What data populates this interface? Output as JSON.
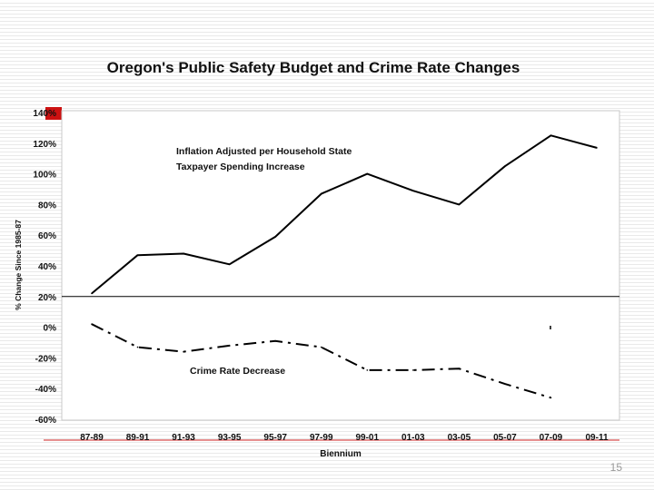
{
  "slide": {
    "title": "Oregon's Public Safety Budget and Crime Rate Changes",
    "page_number": "15"
  },
  "chart_data": {
    "type": "line",
    "title": "Oregon's Public Safety Budget and Crime Rate Changes",
    "xlabel": "Biennium",
    "ylabel": "% Change Since 1985-87",
    "ylim": [
      -60,
      140
    ],
    "yticks": [
      140,
      120,
      100,
      80,
      60,
      40,
      20,
      0,
      -20,
      -40,
      -60
    ],
    "ytick_labels": [
      "140%",
      "120%",
      "100%",
      "80%",
      "60%",
      "40%",
      "20%",
      "0%",
      "-20%",
      "-40%",
      "-60%"
    ],
    "categories": [
      "87-89",
      "89-91",
      "91-93",
      "93-95",
      "95-97",
      "97-99",
      "99-01",
      "01-03",
      "03-05",
      "05-07",
      "07-09",
      "09-11"
    ],
    "reference_line_y": 20,
    "series": [
      {
        "name": "Inflation Adjusted per Household State Taxpayer Spending Increase",
        "label_lines": [
          "Inflation Adjusted per Household State",
          "Taxpayer Spending Increase"
        ],
        "style": "solid",
        "values": [
          22,
          47,
          48,
          41,
          59,
          87,
          100,
          89,
          80,
          105,
          125,
          117
        ]
      },
      {
        "name": "Crime Rate Decrease",
        "label_lines": [
          "Crime Rate Decrease"
        ],
        "style": "dash-dot",
        "values": [
          2,
          -13,
          -16,
          -12,
          -9,
          -13,
          -28,
          -28,
          -27,
          -37,
          -46,
          null
        ]
      }
    ]
  }
}
